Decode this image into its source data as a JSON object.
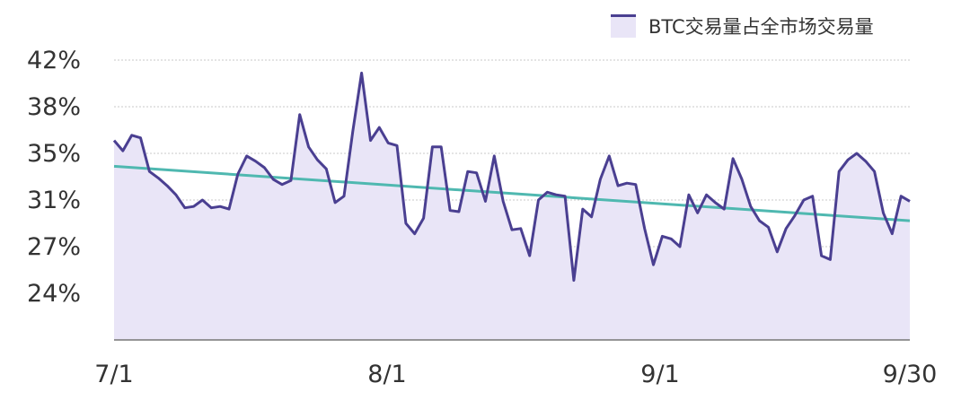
{
  "legend": {
    "label": "BTC交易量占全市场交易量",
    "line_color": "#4a3f91",
    "fill_color": "#e9e5f7"
  },
  "trend_color": "#4fb8b0",
  "chart_data": {
    "type": "area",
    "title": "",
    "xlabel": "",
    "ylabel": "",
    "legend": [
      "BTC交易量占全市场交易量"
    ],
    "legend_position": "top-right",
    "grid": true,
    "y_ticks": [
      "42%",
      "38%",
      "35%",
      "31%",
      "27%",
      "24%"
    ],
    "x_ticks": [
      "7/1",
      "8/1",
      "9/1",
      "9/30"
    ],
    "ylim": [
      20.6,
      42
    ],
    "x_range": [
      "7/1",
      "9/30"
    ],
    "series": [
      {
        "name": "BTC交易量占全市场交易量",
        "values": [
          35.8,
          35.0,
          36.2,
          36.0,
          33.4,
          32.9,
          32.3,
          31.6,
          30.6,
          30.7,
          31.2,
          30.6,
          30.7,
          30.5,
          33.2,
          34.6,
          34.2,
          33.7,
          32.8,
          32.4,
          32.7,
          37.8,
          35.3,
          34.3,
          33.6,
          31.0,
          31.5,
          36.5,
          41.0,
          35.8,
          36.8,
          35.6,
          35.4,
          29.4,
          28.6,
          29.8,
          35.3,
          35.3,
          30.4,
          30.3,
          33.4,
          33.3,
          31.1,
          34.6,
          31.1,
          28.9,
          29.0,
          26.9,
          31.2,
          31.8,
          31.6,
          31.5,
          25.0,
          30.5,
          29.9,
          32.8,
          34.6,
          32.3,
          32.5,
          32.4,
          29.0,
          26.2,
          28.4,
          28.2,
          27.6,
          31.6,
          30.2,
          31.6,
          31.0,
          30.5,
          34.4,
          32.8,
          30.7,
          29.6,
          29.1,
          27.2,
          29.0,
          30.0,
          31.2,
          31.5,
          26.9,
          26.6,
          33.4,
          34.3,
          34.8,
          34.2,
          33.4,
          30.2,
          28.6,
          31.5,
          31.1
        ],
        "line_color": "#4a3f91",
        "fill_color": "#e9e5f7"
      },
      {
        "name": "trend",
        "type": "line",
        "start": 33.8,
        "end": 29.6,
        "line_color": "#4fb8b0"
      }
    ]
  }
}
